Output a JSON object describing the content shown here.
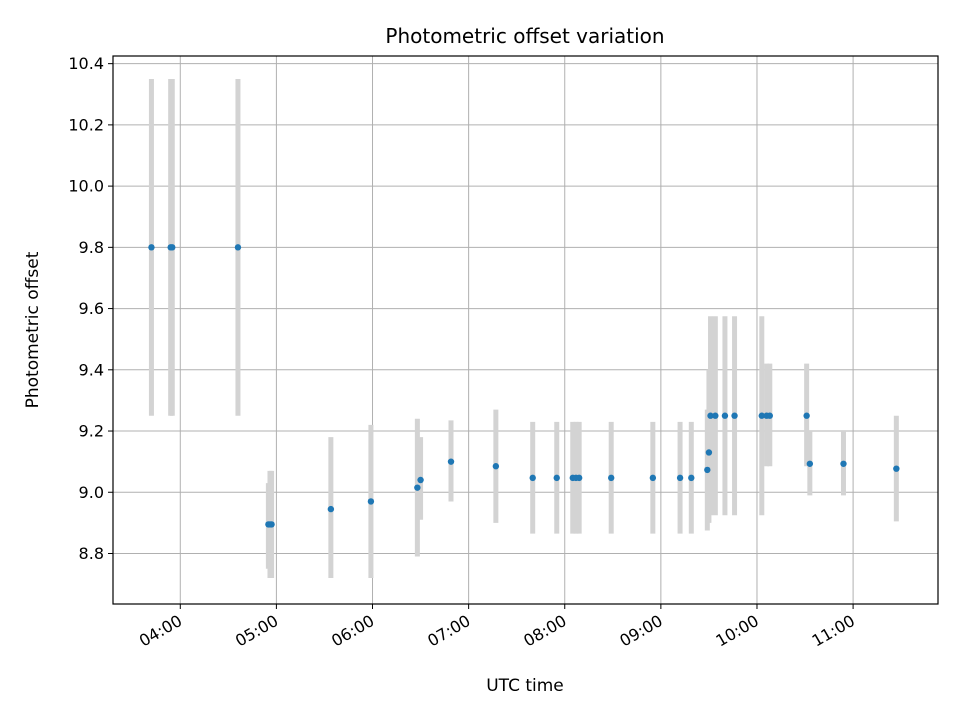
{
  "chart_data": {
    "type": "scatter",
    "title": "Photometric offset variation",
    "xlabel": "UTC time",
    "ylabel": "Photometric offset",
    "x_tick_labels": [
      "04:00",
      "05:00",
      "06:00",
      "07:00",
      "08:00",
      "09:00",
      "10:00",
      "11:00"
    ],
    "y_tick_labels": [
      "8.8",
      "9.0",
      "9.2",
      "9.4",
      "9.6",
      "9.8",
      "10.0",
      "10.2",
      "10.4"
    ],
    "xlim": [
      "03:18",
      "11:53"
    ],
    "ylim": [
      8.635,
      10.425
    ],
    "grid": true,
    "point_color": "#1f77b4",
    "errorbar_color": "#d3d3d3",
    "points": [
      {
        "time": "03:42",
        "y": 9.8,
        "lo": 9.25,
        "hi": 10.35
      },
      {
        "time": "03:54",
        "y": 9.8,
        "lo": 9.25,
        "hi": 10.35
      },
      {
        "time": "03:55",
        "y": 9.8,
        "lo": 9.25,
        "hi": 10.35
      },
      {
        "time": "04:36",
        "y": 9.8,
        "lo": 9.25,
        "hi": 10.35
      },
      {
        "time": "04:55",
        "y": 8.895,
        "lo": 8.75,
        "hi": 9.03
      },
      {
        "time": "04:56",
        "y": 8.895,
        "lo": 8.72,
        "hi": 9.07
      },
      {
        "time": "04:57",
        "y": 8.895,
        "lo": 8.72,
        "hi": 9.07
      },
      {
        "time": "05:34",
        "y": 8.945,
        "lo": 8.72,
        "hi": 9.18
      },
      {
        "time": "05:59",
        "y": 8.97,
        "lo": 8.72,
        "hi": 9.22
      },
      {
        "time": "06:28",
        "y": 9.015,
        "lo": 8.79,
        "hi": 9.24
      },
      {
        "time": "06:30",
        "y": 9.04,
        "lo": 8.91,
        "hi": 9.18
      },
      {
        "time": "06:49",
        "y": 9.1,
        "lo": 8.97,
        "hi": 9.235
      },
      {
        "time": "07:17",
        "y": 9.085,
        "lo": 8.9,
        "hi": 9.27
      },
      {
        "time": "07:40",
        "y": 9.047,
        "lo": 8.865,
        "hi": 9.23
      },
      {
        "time": "07:55",
        "y": 9.047,
        "lo": 8.865,
        "hi": 9.23
      },
      {
        "time": "08:05",
        "y": 9.047,
        "lo": 8.865,
        "hi": 9.23
      },
      {
        "time": "08:07",
        "y": 9.047,
        "lo": 8.865,
        "hi": 9.23
      },
      {
        "time": "08:09",
        "y": 9.047,
        "lo": 8.865,
        "hi": 9.23
      },
      {
        "time": "08:29",
        "y": 9.047,
        "lo": 8.865,
        "hi": 9.23
      },
      {
        "time": "08:55",
        "y": 9.047,
        "lo": 8.865,
        "hi": 9.23
      },
      {
        "time": "09:12",
        "y": 9.047,
        "lo": 8.865,
        "hi": 9.23
      },
      {
        "time": "09:19",
        "y": 9.047,
        "lo": 8.865,
        "hi": 9.23
      },
      {
        "time": "09:29",
        "y": 9.073,
        "lo": 8.875,
        "hi": 9.27
      },
      {
        "time": "09:30",
        "y": 9.13,
        "lo": 8.9,
        "hi": 9.4
      },
      {
        "time": "09:31",
        "y": 9.25,
        "lo": 8.925,
        "hi": 9.575
      },
      {
        "time": "09:34",
        "y": 9.25,
        "lo": 8.925,
        "hi": 9.575
      },
      {
        "time": "09:40",
        "y": 9.25,
        "lo": 8.925,
        "hi": 9.575
      },
      {
        "time": "09:46",
        "y": 9.25,
        "lo": 8.925,
        "hi": 9.575
      },
      {
        "time": "10:03",
        "y": 9.25,
        "lo": 8.925,
        "hi": 9.575
      },
      {
        "time": "10:06",
        "y": 9.25,
        "lo": 9.085,
        "hi": 9.42
      },
      {
        "time": "10:08",
        "y": 9.25,
        "lo": 9.085,
        "hi": 9.42
      },
      {
        "time": "10:31",
        "y": 9.25,
        "lo": 9.085,
        "hi": 9.42
      },
      {
        "time": "10:33",
        "y": 9.093,
        "lo": 8.99,
        "hi": 9.2
      },
      {
        "time": "10:54",
        "y": 9.093,
        "lo": 8.99,
        "hi": 9.2
      },
      {
        "time": "11:27",
        "y": 9.077,
        "lo": 8.905,
        "hi": 9.25
      }
    ]
  }
}
